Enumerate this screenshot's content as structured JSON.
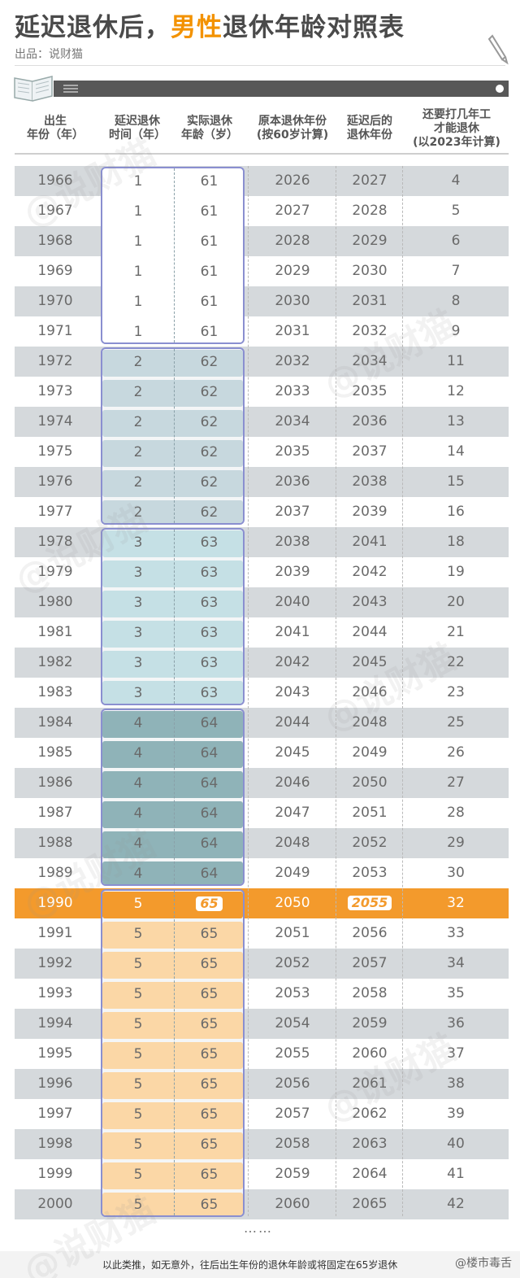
{
  "title": {
    "prefix": "延迟退休后，",
    "highlight": "男性",
    "suffix": "退休年龄对照表"
  },
  "credit": "出品：说财猫",
  "colors": {
    "accent": "#f39a2c",
    "alt_row": "#d5d9dc",
    "group_border": "#8a8fd0"
  },
  "headers": [
    "出生\n年份（年）",
    "延迟退休\n时间（年）",
    "实际退休\n年龄（岁）",
    "原本退休年份\n(按60岁计算)",
    "延迟后的\n退休年份",
    "还要打几年工\n才能退休\n(以2023年计算)"
  ],
  "rows": [
    [
      "1966",
      "1",
      "61",
      "2026",
      "2027",
      "4"
    ],
    [
      "1967",
      "1",
      "61",
      "2027",
      "2028",
      "5"
    ],
    [
      "1968",
      "1",
      "61",
      "2028",
      "2029",
      "6"
    ],
    [
      "1969",
      "1",
      "61",
      "2029",
      "2030",
      "7"
    ],
    [
      "1970",
      "1",
      "61",
      "2030",
      "2031",
      "8"
    ],
    [
      "1971",
      "1",
      "61",
      "2031",
      "2032",
      "9"
    ],
    [
      "1972",
      "2",
      "62",
      "2032",
      "2034",
      "11"
    ],
    [
      "1973",
      "2",
      "62",
      "2033",
      "2035",
      "12"
    ],
    [
      "1974",
      "2",
      "62",
      "2034",
      "2036",
      "13"
    ],
    [
      "1975",
      "2",
      "62",
      "2035",
      "2037",
      "14"
    ],
    [
      "1976",
      "2",
      "62",
      "2036",
      "2038",
      "15"
    ],
    [
      "1977",
      "2",
      "62",
      "2037",
      "2039",
      "16"
    ],
    [
      "1978",
      "3",
      "63",
      "2038",
      "2041",
      "18"
    ],
    [
      "1979",
      "3",
      "63",
      "2039",
      "2042",
      "19"
    ],
    [
      "1980",
      "3",
      "63",
      "2040",
      "2043",
      "20"
    ],
    [
      "1981",
      "3",
      "63",
      "2041",
      "2044",
      "21"
    ],
    [
      "1982",
      "3",
      "63",
      "2042",
      "2045",
      "22"
    ],
    [
      "1983",
      "3",
      "63",
      "2043",
      "2046",
      "23"
    ],
    [
      "1984",
      "4",
      "64",
      "2044",
      "2048",
      "25"
    ],
    [
      "1985",
      "4",
      "64",
      "2045",
      "2049",
      "26"
    ],
    [
      "1986",
      "4",
      "64",
      "2046",
      "2050",
      "27"
    ],
    [
      "1987",
      "4",
      "64",
      "2047",
      "2051",
      "28"
    ],
    [
      "1988",
      "4",
      "64",
      "2048",
      "2052",
      "29"
    ],
    [
      "1989",
      "4",
      "64",
      "2049",
      "2053",
      "30"
    ],
    [
      "1990",
      "5",
      "65",
      "2050",
      "2055",
      "32"
    ],
    [
      "1991",
      "5",
      "65",
      "2051",
      "2056",
      "33"
    ],
    [
      "1992",
      "5",
      "65",
      "2052",
      "2057",
      "34"
    ],
    [
      "1993",
      "5",
      "65",
      "2053",
      "2058",
      "35"
    ],
    [
      "1994",
      "5",
      "65",
      "2054",
      "2059",
      "36"
    ],
    [
      "1995",
      "5",
      "65",
      "2055",
      "2060",
      "37"
    ],
    [
      "1996",
      "5",
      "65",
      "2056",
      "2061",
      "38"
    ],
    [
      "1997",
      "5",
      "65",
      "2057",
      "2062",
      "39"
    ],
    [
      "1998",
      "5",
      "65",
      "2058",
      "2063",
      "40"
    ],
    [
      "1999",
      "5",
      "65",
      "2059",
      "2064",
      "41"
    ],
    [
      "2000",
      "5",
      "65",
      "2060",
      "2065",
      "42"
    ]
  ],
  "highlight_row": 24,
  "groups": [
    {
      "start": 0,
      "count": 6,
      "fill": "#ffffff"
    },
    {
      "start": 6,
      "count": 6,
      "fill": "#c7d8de"
    },
    {
      "start": 12,
      "count": 6,
      "fill": "#c5e0e5"
    },
    {
      "start": 18,
      "count": 6,
      "fill": "#8fb3b8"
    },
    {
      "start": 24,
      "count": 11,
      "fill": "#fbd7a6"
    }
  ],
  "ellipsis": "……",
  "footer": "以此类推，如无意外，往后出生年份的退休年龄或将固定在65岁退休",
  "watermark_source": "@楼市毒舌",
  "watermark": "@说财猫",
  "icons": {
    "book": "book-icon",
    "pen": "pen-icon",
    "menu": "menu-icon"
  }
}
